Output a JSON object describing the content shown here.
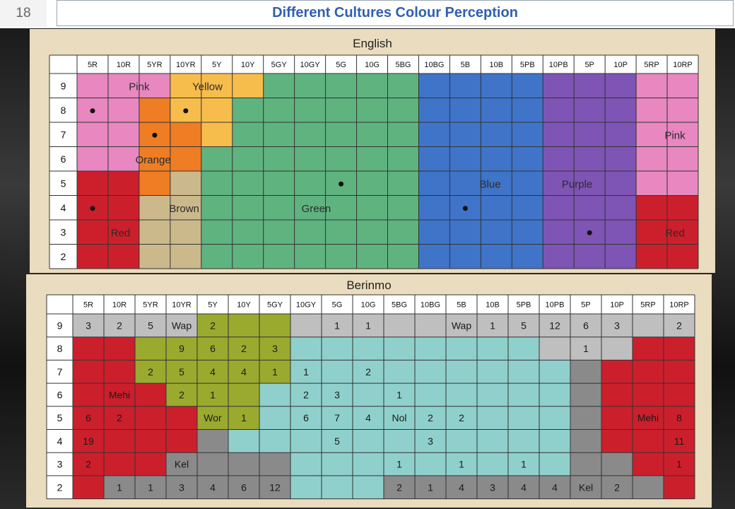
{
  "slide": {
    "number": "18",
    "title": "Different Cultures Colour Perception"
  },
  "colors": {
    "pink": "#e887c0",
    "orange": "#ee7d24",
    "yellow": "#f7bd4c",
    "brown": "#cbb98c",
    "red": "#cc1f2c",
    "green": "#5fb37f",
    "blue": "#3f74c8",
    "purple": "#7e54b4",
    "lightpink": "#ef8fc6",
    "olive": "#9aaa2e",
    "cyan": "#8fd0cc",
    "gray": "#bfbfbf",
    "darkgray": "#8a8a8a",
    "white": "#ffffff"
  },
  "columns": [
    "5R",
    "10R",
    "5YR",
    "10YR",
    "5Y",
    "10Y",
    "5GY",
    "10GY",
    "5G",
    "10G",
    "5BG",
    "10BG",
    "5B",
    "10B",
    "5PB",
    "10PB",
    "5P",
    "10P",
    "5RP",
    "10RP"
  ],
  "rows": [
    "9",
    "8",
    "7",
    "6",
    "5",
    "4",
    "3",
    "2"
  ],
  "english": {
    "title": "English",
    "grid": [
      "PPPYYYGGGGGBBBBUUUPP",
      "PPOYYGGGGGGBBBBUUUPP",
      "PPOOYGGGGGGBBBBUUUPP",
      "PPOOGGGGGGGBBBBUUUPP",
      "RROWGGGGGGGBBBBUUUPP",
      "RRWWGGGGGGGBBBBUUURR",
      "RRWWGGGGGGGBBBBUUURR",
      "RRWWGGGGGGGBBBBUUURR"
    ],
    "legend": {
      "P": "pink",
      "O": "orange",
      "Y": "yellow",
      "W": "brown",
      "R": "red",
      "G": "green",
      "B": "blue",
      "U": "purple"
    },
    "labels": [
      "Pink",
      "Yellow",
      "Orange",
      "Brown",
      "Green",
      "Blue",
      "Purple",
      "Pink",
      "Red",
      "Red"
    ],
    "dots": [
      [
        1,
        0
      ],
      [
        1,
        3
      ],
      [
        2,
        2
      ],
      [
        4,
        8
      ],
      [
        5,
        0
      ],
      [
        5,
        12
      ],
      [
        6,
        16
      ]
    ]
  },
  "berinmo": {
    "title": "Berinmo",
    "grid": [
      "KKKKOOOKKKKKKKKKKKKK",
      "RRGOOOOCCCCCCCCKKKRR",
      "RROOOOOCCCCCCCCCDRRR",
      "RRROOOCCCCCCCCCCDRRR",
      "RRRROOCCCCCCCCCCDRRR",
      "RRRRDCCCCCCCCCCCDRRR",
      "RRRDDDDCCCCCCCCCDDRR",
      "RDDDDDDCCCDDDDDDDDDR"
    ],
    "legend": {
      "R": "red",
      "O": "olive",
      "G": "olive",
      "C": "cyan",
      "K": "gray",
      "D": "darkgray"
    },
    "cells": [
      [
        "3",
        "2",
        "5",
        "Wap",
        "2",
        "",
        "",
        "",
        "1",
        "1",
        "",
        "",
        "Wap",
        "1",
        "5",
        "12",
        "6",
        "3",
        "",
        "2"
      ],
      [
        "",
        "",
        "",
        "9",
        "6",
        "2",
        "3",
        "",
        "",
        "",
        "",
        "",
        "",
        "",
        "",
        "",
        "1",
        "",
        "",
        ""
      ],
      [
        "",
        "",
        "2",
        "5",
        "4",
        "4",
        "1",
        "1",
        "",
        "2",
        "",
        "",
        "",
        "",
        "",
        "",
        "",
        "",
        "",
        ""
      ],
      [
        "",
        "Mehi",
        "",
        "2",
        "1",
        "",
        "",
        "2",
        "3",
        "",
        "1",
        "",
        "",
        "",
        "",
        "",
        "",
        "",
        "",
        ""
      ],
      [
        "6",
        "2",
        "",
        "",
        "Wor",
        "1",
        "",
        "6",
        "7",
        "4",
        "Nol",
        "2",
        "2",
        "",
        "",
        "",
        "",
        "",
        "Mehi",
        "8"
      ],
      [
        "19",
        "",
        "",
        "",
        "",
        "",
        "",
        "",
        "5",
        "",
        "",
        "3",
        "",
        "",
        "",
        "",
        "",
        "",
        "",
        "11"
      ],
      [
        "2",
        "",
        "",
        "Kel",
        "",
        "",
        "",
        "",
        "",
        "",
        "1",
        "",
        "1",
        "",
        "1",
        "",
        "",
        "",
        "",
        "1"
      ],
      [
        "",
        "1",
        "1",
        "3",
        "4",
        "6",
        "12",
        "",
        "",
        "",
        "2",
        "1",
        "4",
        "3",
        "4",
        "4",
        "Kel",
        "2",
        "",
        ""
      ]
    ]
  }
}
